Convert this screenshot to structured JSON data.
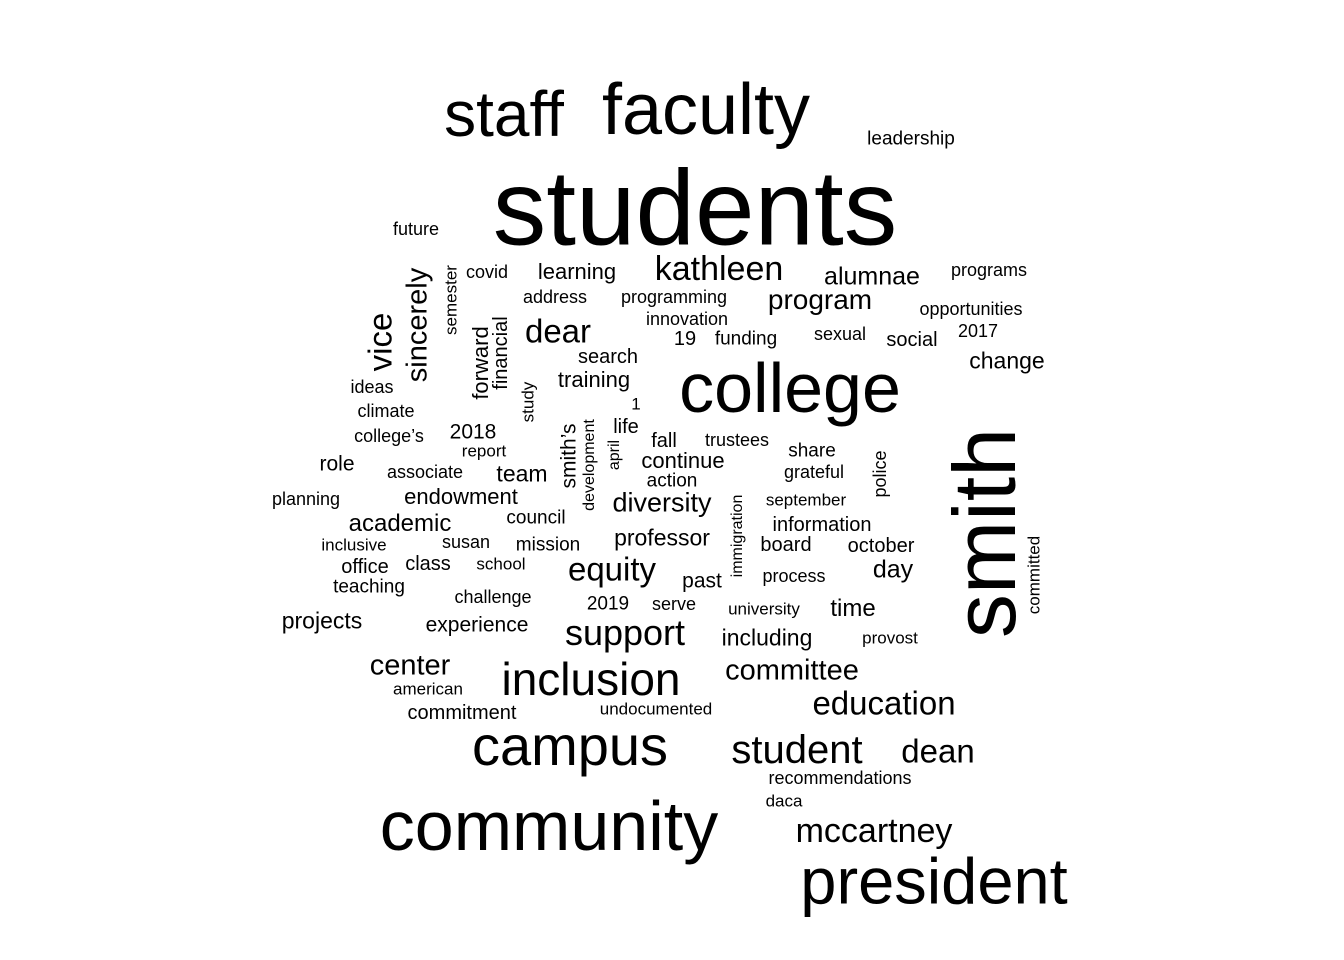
{
  "word_cloud": {
    "text_color": "#000000",
    "background_color": "#ffffff",
    "words": [
      {
        "text": "students",
        "weight": 100,
        "rotated": false
      },
      {
        "text": "smith",
        "weight": 88,
        "rotated": true
      },
      {
        "text": "faculty",
        "weight": 71,
        "rotated": false
      },
      {
        "text": "staff",
        "weight": 64,
        "rotated": false
      },
      {
        "text": "college",
        "weight": 68,
        "rotated": false
      },
      {
        "text": "community",
        "weight": 70,
        "rotated": false
      },
      {
        "text": "president",
        "weight": 64,
        "rotated": false
      },
      {
        "text": "campus",
        "weight": 56,
        "rotated": false
      },
      {
        "text": "inclusion",
        "weight": 45,
        "rotated": false
      },
      {
        "text": "kathleen",
        "weight": 33,
        "rotated": false
      },
      {
        "text": "support",
        "weight": 36,
        "rotated": false
      },
      {
        "text": "student",
        "weight": 40,
        "rotated": false
      },
      {
        "text": "mccartney",
        "weight": 33,
        "rotated": false
      },
      {
        "text": "dean",
        "weight": 33,
        "rotated": false
      },
      {
        "text": "education",
        "weight": 33,
        "rotated": false
      },
      {
        "text": "equity",
        "weight": 33,
        "rotated": false
      },
      {
        "text": "dear",
        "weight": 33,
        "rotated": false
      },
      {
        "text": "committee",
        "weight": 29,
        "rotated": false
      },
      {
        "text": "center",
        "weight": 29,
        "rotated": false
      },
      {
        "text": "vice",
        "weight": 33,
        "rotated": true
      },
      {
        "text": "sincerely",
        "weight": 29,
        "rotated": true
      },
      {
        "text": "program",
        "weight": 27,
        "rotated": false
      },
      {
        "text": "alumnae",
        "weight": 25,
        "rotated": false
      },
      {
        "text": "diversity",
        "weight": 27,
        "rotated": false
      },
      {
        "text": "academic",
        "weight": 24,
        "rotated": false
      },
      {
        "text": "change",
        "weight": 23,
        "rotated": false
      },
      {
        "text": "team",
        "weight": 23,
        "rotated": false
      },
      {
        "text": "endowment",
        "weight": 22,
        "rotated": false
      },
      {
        "text": "professor",
        "weight": 23,
        "rotated": false
      },
      {
        "text": "training",
        "weight": 22,
        "rotated": false
      },
      {
        "text": "learning",
        "weight": 22,
        "rotated": false
      },
      {
        "text": "continue",
        "weight": 22,
        "rotated": false
      },
      {
        "text": "day",
        "weight": 25,
        "rotated": false
      },
      {
        "text": "time",
        "weight": 24,
        "rotated": false
      },
      {
        "text": "including",
        "weight": 23,
        "rotated": false
      },
      {
        "text": "projects",
        "weight": 23,
        "rotated": false
      },
      {
        "text": "experience",
        "weight": 21,
        "rotated": false
      },
      {
        "text": "forward",
        "weight": 22,
        "rotated": true
      },
      {
        "text": "financial",
        "weight": 20,
        "rotated": true
      },
      {
        "text": "smith’s",
        "weight": 21,
        "rotated": true
      },
      {
        "text": "2018",
        "weight": 21,
        "rotated": false
      },
      {
        "text": "life",
        "weight": 21,
        "rotated": false
      },
      {
        "text": "fall",
        "weight": 20,
        "rotated": false
      },
      {
        "text": "past",
        "weight": 21,
        "rotated": false
      },
      {
        "text": "role",
        "weight": 21,
        "rotated": false
      },
      {
        "text": "search",
        "weight": 20,
        "rotated": false
      },
      {
        "text": "office",
        "weight": 20,
        "rotated": false
      },
      {
        "text": "class",
        "weight": 20,
        "rotated": false
      },
      {
        "text": "teaching",
        "weight": 19,
        "rotated": false
      },
      {
        "text": "commitment",
        "weight": 20,
        "rotated": false
      },
      {
        "text": "information",
        "weight": 20,
        "rotated": false
      },
      {
        "text": "board",
        "weight": 20,
        "rotated": false
      },
      {
        "text": "october",
        "weight": 20,
        "rotated": false
      },
      {
        "text": "social",
        "weight": 20,
        "rotated": false
      },
      {
        "text": "19",
        "weight": 20,
        "rotated": false
      },
      {
        "text": "funding",
        "weight": 19,
        "rotated": false
      },
      {
        "text": "action",
        "weight": 19,
        "rotated": false
      },
      {
        "text": "council",
        "weight": 19,
        "rotated": false
      },
      {
        "text": "mission",
        "weight": 19,
        "rotated": false
      },
      {
        "text": "share",
        "weight": 19,
        "rotated": false
      },
      {
        "text": "2019",
        "weight": 19,
        "rotated": false
      },
      {
        "text": "serve",
        "weight": 18,
        "rotated": false
      },
      {
        "text": "process",
        "weight": 18,
        "rotated": false
      },
      {
        "text": "challenge",
        "weight": 18,
        "rotated": false
      },
      {
        "text": "leadership",
        "weight": 19,
        "rotated": false
      },
      {
        "text": "recommendations",
        "weight": 18,
        "rotated": false
      },
      {
        "text": "future",
        "weight": 18,
        "rotated": false
      },
      {
        "text": "covid",
        "weight": 18,
        "rotated": false
      },
      {
        "text": "address",
        "weight": 18,
        "rotated": false
      },
      {
        "text": "programming",
        "weight": 18,
        "rotated": false
      },
      {
        "text": "programs",
        "weight": 18,
        "rotated": false
      },
      {
        "text": "opportunities",
        "weight": 18,
        "rotated": false
      },
      {
        "text": "innovation",
        "weight": 18,
        "rotated": false
      },
      {
        "text": "sexual",
        "weight": 18,
        "rotated": false
      },
      {
        "text": "2017",
        "weight": 18,
        "rotated": false
      },
      {
        "text": "ideas",
        "weight": 18,
        "rotated": false
      },
      {
        "text": "climate",
        "weight": 18,
        "rotated": false
      },
      {
        "text": "college’s",
        "weight": 18,
        "rotated": false
      },
      {
        "text": "report",
        "weight": 17,
        "rotated": false
      },
      {
        "text": "associate",
        "weight": 18,
        "rotated": false
      },
      {
        "text": "trustees",
        "weight": 18,
        "rotated": false
      },
      {
        "text": "grateful",
        "weight": 18,
        "rotated": false
      },
      {
        "text": "planning",
        "weight": 18,
        "rotated": false
      },
      {
        "text": "september",
        "weight": 17,
        "rotated": false
      },
      {
        "text": "inclusive",
        "weight": 17,
        "rotated": false
      },
      {
        "text": "susan",
        "weight": 18,
        "rotated": false
      },
      {
        "text": "school",
        "weight": 17,
        "rotated": false
      },
      {
        "text": "university",
        "weight": 17,
        "rotated": false
      },
      {
        "text": "provost",
        "weight": 17,
        "rotated": false
      },
      {
        "text": "american",
        "weight": 17,
        "rotated": false
      },
      {
        "text": "undocumented",
        "weight": 17,
        "rotated": false
      },
      {
        "text": "daca",
        "weight": 17,
        "rotated": false
      },
      {
        "text": "1",
        "weight": 17,
        "rotated": false
      },
      {
        "text": "semester",
        "weight": 17,
        "rotated": true
      },
      {
        "text": "study",
        "weight": 17,
        "rotated": true
      },
      {
        "text": "development",
        "weight": 16,
        "rotated": true
      },
      {
        "text": "april",
        "weight": 16,
        "rotated": true
      },
      {
        "text": "immigration",
        "weight": 16,
        "rotated": true
      },
      {
        "text": "police",
        "weight": 18,
        "rotated": true
      },
      {
        "text": "committed",
        "weight": 17,
        "rotated": true
      }
    ]
  }
}
